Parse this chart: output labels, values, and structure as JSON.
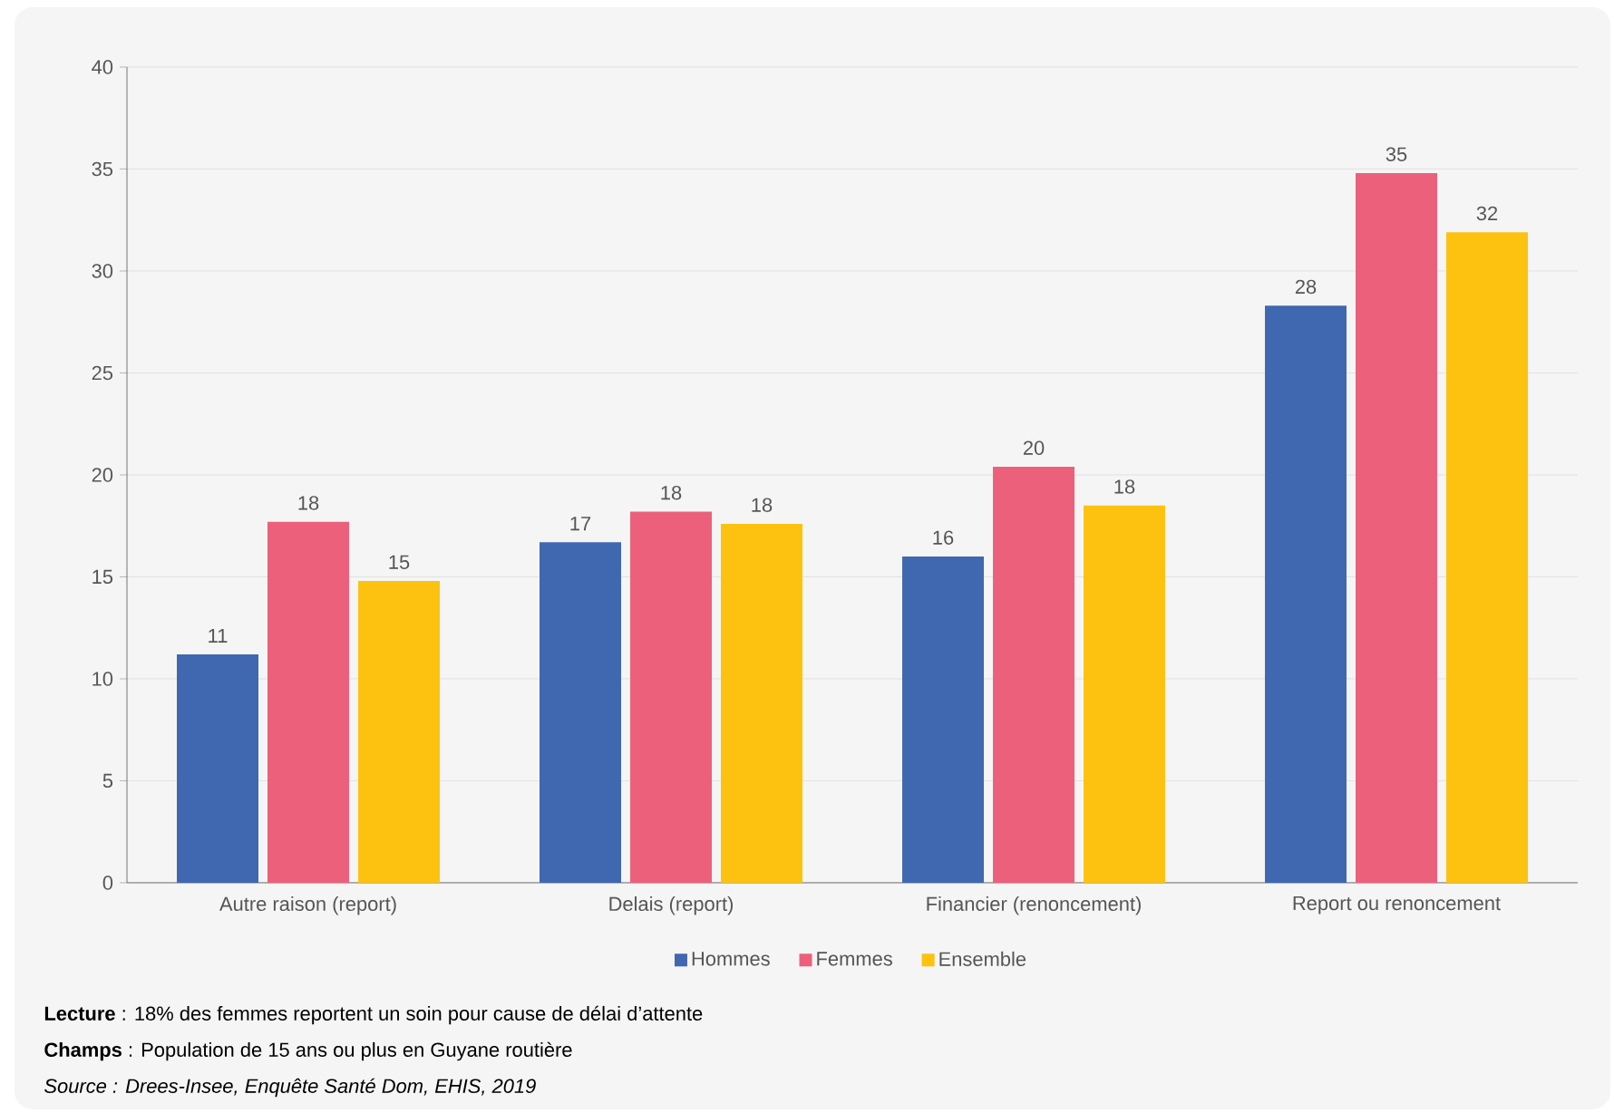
{
  "chart_data": {
    "type": "bar",
    "categories": [
      "Autre raison (report)",
      "Delais (report)",
      "Financier (renoncement)",
      "Report ou renoncement"
    ],
    "series": [
      {
        "name": "Hommes",
        "color": "#3f68b0",
        "values": [
          11.2,
          16.7,
          16.0,
          28.3
        ],
        "value_labels": [
          "11",
          "17",
          "16",
          "28"
        ]
      },
      {
        "name": "Femmes",
        "color": "#ec607c",
        "values": [
          17.7,
          18.2,
          20.4,
          34.8
        ],
        "value_labels": [
          "18",
          "18",
          "20",
          "35"
        ]
      },
      {
        "name": "Ensemble",
        "color": "#fdc20f",
        "values": [
          14.8,
          17.6,
          18.5,
          31.9
        ],
        "value_labels": [
          "15",
          "18",
          "18",
          "32"
        ]
      }
    ],
    "ylim": [
      0,
      40
    ],
    "yticks": [
      0,
      5,
      10,
      15,
      20,
      25,
      30,
      35,
      40
    ],
    "grid": "y",
    "legend": "bottom",
    "annotations": [
      "**Lecture** : 18% des femmes reportent un soin pour cause de délai d’attente",
      "**Champs** : Population de 15 ans ou plus en Guyane routière",
      "*Source : Drees-Insee, Enquête Santé Dom, EHIS, 2019*"
    ]
  }
}
